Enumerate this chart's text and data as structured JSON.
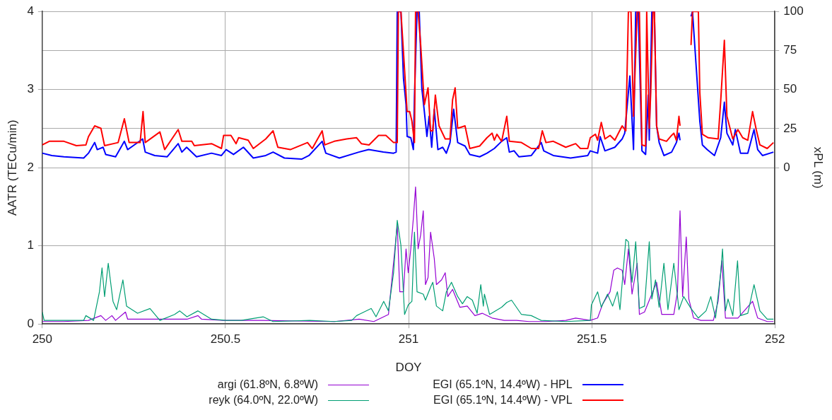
{
  "chart_data": {
    "type": "line",
    "xlabel": "DOY",
    "ylabel": "AATR (TECu/min)",
    "y2label": "xPL (m)",
    "xlim": [
      250,
      252
    ],
    "xticks": [
      250,
      250.5,
      251,
      251.5,
      252
    ],
    "ylim": [
      0,
      4
    ],
    "yticks": [
      0,
      1,
      2,
      3,
      4
    ],
    "y2lim": [
      -100,
      100
    ],
    "y2ticks": [
      0,
      25,
      50,
      75,
      100
    ],
    "grid": true,
    "legend": "bottom",
    "marker": "none",
    "line_style": "solid",
    "series": [
      {
        "name": "argi (61.8ºN, 6.8ºW)",
        "color": "#9400d3",
        "x": [
          250.0,
          250.059,
          250.126,
          250.16,
          250.173,
          250.19,
          250.2,
          250.227,
          250.233,
          250.294,
          250.395,
          250.425,
          250.435,
          250.495,
          250.596,
          250.797,
          250.865,
          250.905,
          250.945,
          250.969,
          250.976,
          250.986,
          250.993,
          250.999,
          251.006,
          251.013,
          251.019,
          251.026,
          251.033,
          251.04,
          251.046,
          251.053,
          251.06,
          251.07,
          251.076,
          251.09,
          251.1,
          251.107,
          251.12,
          251.14,
          251.16,
          251.181,
          251.201,
          251.228,
          251.261,
          251.295,
          251.328,
          251.375,
          251.429,
          251.456,
          251.496,
          251.516,
          251.53,
          251.55,
          251.56,
          251.57,
          251.583,
          251.59,
          251.6,
          251.61,
          251.624,
          251.63,
          251.644,
          251.677,
          251.691,
          251.724,
          251.734,
          251.741,
          251.748,
          251.758,
          251.765,
          251.778,
          251.798,
          251.832,
          251.845,
          251.855,
          251.865,
          251.899,
          251.939,
          251.953,
          251.979,
          251.996
        ],
        "values": [
          0.031,
          0.031,
          0.046,
          0.107,
          0.046,
          0.107,
          0.046,
          0.153,
          0.061,
          0.061,
          0.061,
          0.107,
          0.061,
          0.046,
          0.046,
          0.031,
          0.061,
          0.031,
          0.122,
          1.266,
          0.412,
          0.412,
          0.961,
          0.656,
          0.961,
          1.357,
          1.754,
          0.961,
          1.144,
          1.449,
          0.504,
          0.595,
          1.175,
          0.839,
          0.504,
          0.565,
          0.656,
          0.351,
          0.443,
          0.214,
          0.229,
          0.107,
          0.137,
          0.076,
          0.046,
          0.046,
          0.031,
          0.031,
          0.046,
          0.076,
          0.046,
          0.076,
          0.259,
          0.412,
          0.687,
          0.717,
          0.687,
          0.504,
          0.961,
          0.382,
          0.778,
          0.122,
          0.153,
          0.534,
          0.122,
          0.122,
          0.412,
          1.449,
          0.351,
          1.114,
          0.32,
          0.076,
          0.046,
          0.046,
          0.29,
          0.809,
          0.076,
          0.076,
          0.29,
          0.076,
          0.031,
          0.031
        ]
      },
      {
        "name": "reyk (64.0ºN, 22.0ºW)",
        "color": "#009e73",
        "x": [
          250.0,
          250.005,
          250.059,
          250.113,
          250.119,
          250.14,
          250.156,
          250.163,
          250.17,
          250.18,
          250.193,
          250.203,
          250.22,
          250.23,
          250.26,
          250.294,
          250.321,
          250.361,
          250.375,
          250.395,
          250.425,
          250.462,
          250.502,
          250.543,
          250.603,
          250.63,
          250.73,
          250.797,
          250.845,
          250.858,
          250.898,
          250.911,
          250.932,
          250.945,
          250.959,
          250.969,
          250.979,
          250.989,
          250.999,
          251.009,
          251.016,
          251.023,
          251.04,
          251.046,
          251.06,
          251.066,
          251.076,
          251.093,
          251.103,
          251.117,
          251.134,
          251.147,
          251.16,
          251.174,
          251.187,
          251.197,
          251.204,
          251.207,
          251.221,
          251.254,
          251.268,
          251.281,
          251.308,
          251.335,
          251.362,
          251.429,
          251.496,
          251.499,
          251.516,
          251.526,
          251.543,
          251.557,
          251.57,
          251.577,
          251.593,
          251.6,
          251.61,
          251.62,
          251.63,
          251.644,
          251.657,
          251.664,
          251.674,
          251.684,
          251.697,
          251.708,
          251.724,
          251.738,
          251.751,
          251.771,
          251.791,
          251.812,
          251.825,
          251.838,
          251.852,
          251.857,
          251.865,
          251.872,
          251.885,
          251.898,
          251.906,
          251.926,
          251.943,
          251.959,
          251.979,
          251.996
        ],
        "values": [
          0.153,
          0.046,
          0.046,
          0.046,
          0.107,
          0.046,
          0.412,
          0.717,
          0.351,
          0.778,
          0.29,
          0.183,
          0.565,
          0.229,
          0.137,
          0.198,
          0.046,
          0.122,
          0.168,
          0.092,
          0.168,
          0.061,
          0.046,
          0.046,
          0.092,
          0.031,
          0.046,
          0.031,
          0.046,
          0.107,
          0.198,
          0.092,
          0.29,
          0.168,
          0.656,
          1.327,
          1.007,
          0.122,
          0.244,
          0.29,
          1.175,
          0.412,
          0.382,
          0.305,
          0.473,
          0.534,
          0.229,
          0.168,
          0.412,
          0.534,
          0.351,
          0.259,
          0.351,
          0.305,
          0.137,
          0.504,
          0.229,
          0.382,
          0.122,
          0.214,
          0.275,
          0.305,
          0.122,
          0.107,
          0.046,
          0.031,
          0.046,
          0.244,
          0.412,
          0.214,
          0.382,
          0.229,
          0.412,
          0.183,
          1.083,
          1.053,
          0.534,
          1.053,
          0.198,
          0.229,
          1.053,
          0.32,
          0.565,
          0.214,
          0.778,
          0.183,
          0.778,
          0.183,
          0.351,
          0.198,
          0.076,
          0.168,
          0.351,
          0.076,
          0.656,
          0.961,
          0.168,
          0.32,
          0.107,
          0.809,
          0.107,
          0.137,
          0.504,
          0.168,
          0.061,
          0.061
        ]
      },
      {
        "name": "EGI (65.1ºN, 14.4ºW) - HPL",
        "color": "#0000ff",
        "axis": "y2",
        "x": [
          250.0,
          250.026,
          250.059,
          250.113,
          250.126,
          250.143,
          250.15,
          250.166,
          250.173,
          250.2,
          250.224,
          250.233,
          250.247,
          250.274,
          250.281,
          250.307,
          250.341,
          250.371,
          250.381,
          250.394,
          250.421,
          250.462,
          250.489,
          250.502,
          250.522,
          250.549,
          250.576,
          250.61,
          250.63,
          250.661,
          250.708,
          250.728,
          250.764,
          250.774,
          250.811,
          250.864,
          250.891,
          250.931,
          250.959,
          250.966,
          250.969,
          250.979,
          250.986,
          250.993,
          250.996,
          251.006,
          251.013,
          251.016,
          251.023,
          251.029,
          251.036,
          251.043,
          251.05,
          251.056,
          251.063,
          251.07,
          251.08,
          251.093,
          251.103,
          251.113,
          251.123,
          251.134,
          251.154,
          251.167,
          251.194,
          251.214,
          251.234,
          251.254,
          251.268,
          251.275,
          251.288,
          251.301,
          251.335,
          251.362,
          251.369,
          251.395,
          251.442,
          251.489,
          251.496,
          251.516,
          251.523,
          251.536,
          251.563,
          251.583,
          251.59,
          251.604,
          251.614,
          251.62,
          251.627,
          251.637,
          251.647,
          251.654,
          251.657,
          251.664,
          251.671,
          251.677,
          251.684,
          251.697,
          251.718,
          251.731,
          251.738,
          251.741,
          251.745,
          251.771,
          251.775,
          251.795,
          251.802,
          251.815,
          251.835,
          251.852,
          251.862,
          251.869,
          251.885,
          251.892,
          251.906,
          251.926,
          251.943,
          251.953,
          251.966,
          251.996
        ],
        "values": [
          9.3,
          7.8,
          7.0,
          6.2,
          9.3,
          16.1,
          11.6,
          13.1,
          8.5,
          7.0,
          16.9,
          11.6,
          13.9,
          18.4,
          10.0,
          7.8,
          7.0,
          15.4,
          10.0,
          13.1,
          7.0,
          9.3,
          7.8,
          11.6,
          8.5,
          13.1,
          6.2,
          7.8,
          10.0,
          6.2,
          5.5,
          7.8,
          16.9,
          9.3,
          6.2,
          10.0,
          11.6,
          10.0,
          9.3,
          10.0,
          100,
          100,
          57.2,
          40.4,
          20.0,
          19.2,
          11.6,
          45.8,
          100,
          100,
          51.1,
          35.9,
          20.0,
          32.9,
          13.1,
          37.4,
          11.6,
          13.1,
          9.3,
          16.1,
          37.4,
          16.1,
          13.9,
          8.5,
          7.0,
          9.3,
          12.3,
          16.9,
          19.2,
          10.0,
          10.8,
          7.0,
          7.8,
          16.1,
          10.8,
          7.8,
          6.2,
          7.8,
          10.8,
          9.3,
          19.9,
          10.8,
          13.1,
          18.4,
          22.1,
          58.7,
          11.6,
          100,
          100,
          10.8,
          8.5,
          46.5,
          17.6,
          100,
          100,
          26.8,
          16.1,
          7.8,
          10.0,
          16.1,
          22.1,
          17.6,
          null,
          96.8,
          100,
          29.8,
          14.6,
          11.6,
          7.8,
          19.2,
          41.9,
          22.1,
          14.6,
          24.4,
          9.3,
          9.3,
          24.4,
          11.6,
          7.8,
          10.0
        ]
      },
      {
        "name": "EGI (65.1ºN, 14.4ºW) - VPL",
        "color": "#ff0000",
        "axis": "y2",
        "x": [
          250.0,
          250.019,
          250.059,
          250.093,
          250.119,
          250.126,
          250.143,
          250.16,
          250.17,
          250.207,
          250.224,
          250.237,
          250.267,
          250.275,
          250.281,
          250.321,
          250.334,
          250.371,
          250.381,
          250.408,
          250.415,
          250.462,
          250.489,
          250.495,
          250.515,
          250.529,
          250.536,
          250.562,
          250.576,
          250.61,
          250.63,
          250.643,
          250.677,
          250.724,
          250.737,
          250.764,
          250.771,
          250.797,
          250.831,
          250.858,
          250.871,
          250.892,
          250.918,
          250.938,
          250.959,
          250.969,
          250.972,
          250.979,
          250.986,
          250.996,
          251.003,
          251.009,
          251.016,
          251.019,
          251.026,
          251.033,
          251.043,
          251.053,
          251.06,
          251.066,
          251.073,
          251.083,
          251.1,
          251.113,
          251.12,
          251.127,
          251.134,
          251.154,
          251.167,
          251.194,
          251.214,
          251.228,
          251.234,
          251.241,
          251.254,
          251.268,
          251.275,
          251.308,
          251.335,
          251.355,
          251.365,
          251.375,
          251.395,
          251.429,
          251.456,
          251.469,
          251.489,
          251.496,
          251.51,
          251.516,
          251.526,
          251.536,
          251.55,
          251.563,
          251.583,
          251.593,
          251.6,
          251.607,
          251.614,
          251.624,
          251.63,
          251.637,
          251.647,
          251.65,
          251.657,
          251.661,
          251.667,
          251.671,
          251.677,
          251.684,
          251.704,
          251.718,
          251.724,
          251.731,
          251.738,
          251.741,
          251.745,
          251.771,
          251.775,
          251.791,
          251.795,
          251.802,
          251.818,
          251.845,
          251.852,
          251.862,
          251.869,
          251.885,
          251.899,
          251.912,
          251.926,
          251.939,
          251.949,
          251.959,
          251.979,
          251.996
        ],
        "values": [
          14.6,
          16.9,
          16.9,
          14.1,
          14.6,
          19.9,
          26.8,
          25.2,
          14.1,
          16.1,
          31.3,
          16.1,
          16.1,
          35.9,
          16.1,
          22.9,
          11.6,
          24.4,
          16.9,
          16.9,
          14.1,
          15.4,
          12.3,
          20.7,
          20.7,
          15.4,
          19.2,
          17.6,
          12.3,
          18.4,
          23.6,
          13.1,
          11.6,
          16.1,
          12.3,
          23.6,
          14.6,
          16.9,
          18.4,
          19.2,
          15.4,
          14.6,
          20.7,
          20.7,
          16.1,
          16.1,
          100,
          100,
          74.0,
          35.9,
          35.9,
          29.8,
          16.1,
          100,
          100,
          78.5,
          40.4,
          51.1,
          23.6,
          23.6,
          46.5,
          26.8,
          18.4,
          18.4,
          43.4,
          51.1,
          25.2,
          26.8,
          12.3,
          13.9,
          19.2,
          22.1,
          17.6,
          21.4,
          16.9,
          32.9,
          16.9,
          16.1,
          12.3,
          12.3,
          23.6,
          16.1,
          16.9,
          13.1,
          15.4,
          12.3,
          12.3,
          19.2,
          21.4,
          17.6,
          29.0,
          18.4,
          20.7,
          17.6,
          26.8,
          23.6,
          100,
          100,
          32.9,
          100,
          100,
          14.6,
          13.9,
          100,
          25.2,
          48.1,
          100,
          100,
          26.8,
          18.4,
          16.9,
          20.7,
          22.1,
          17.6,
          32.9,
          26.8,
          null,
          78.5,
          100,
          100,
          48.1,
          21.4,
          19.2,
          18.4,
          42.7,
          81.5,
          32.9,
          18.4,
          24.4,
          19.2,
          17.6,
          35.9,
          24.4,
          14.6,
          12.3,
          16.1
        ]
      }
    ]
  }
}
